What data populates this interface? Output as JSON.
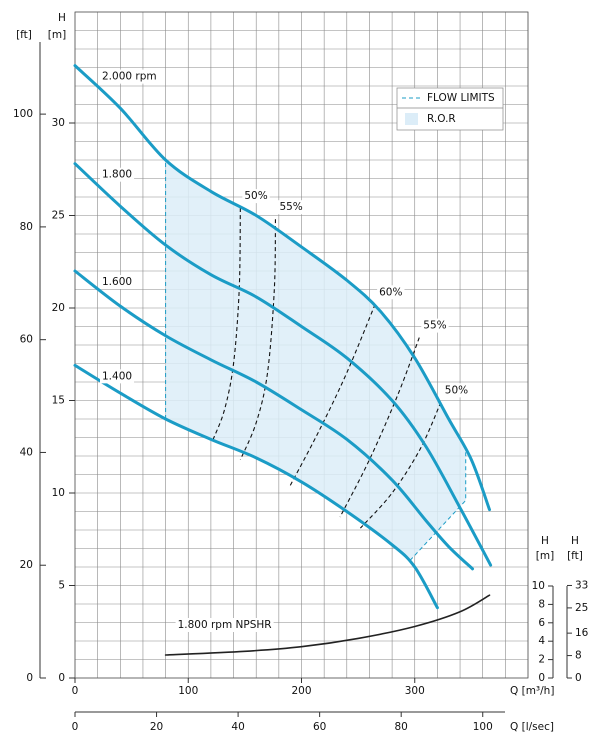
{
  "chart_data": {
    "type": "line",
    "xlabel": "Q [m³/h]",
    "x2label": "Q [l/sec]",
    "ylabel": "H",
    "ylabel_unit": "[m]",
    "yftlabel": "[ft]",
    "y2label": "H",
    "y2label_unit": "[m]",
    "y2ftlabel": "H",
    "y2ftlabel_unit": "[ft]",
    "xlim": [
      0,
      400
    ],
    "xticks": [
      0,
      100,
      200,
      300
    ],
    "x2lim": [
      0,
      111.1
    ],
    "x2ticks": [
      0,
      20,
      40,
      60,
      80,
      100
    ],
    "ylim": [
      0,
      36
    ],
    "yticks": [
      0,
      5,
      10,
      15,
      20,
      25,
      30
    ],
    "yftlim": [
      0,
      118.11
    ],
    "yftticks": [
      0,
      20,
      40,
      60,
      80,
      100
    ],
    "y2lim": [
      0,
      10
    ],
    "y2ticks": [
      0,
      2,
      4,
      6,
      8,
      10
    ],
    "y2ftlim": [
      0,
      32.81
    ],
    "y2ftticks": [
      0,
      8,
      16,
      25,
      33
    ],
    "grid": true,
    "xgrid": [
      0,
      20,
      40,
      60,
      80,
      100,
      120,
      140,
      160,
      180,
      200,
      220,
      240,
      260,
      280,
      300,
      320,
      340,
      360,
      380,
      400
    ],
    "ygrid": [
      0,
      1,
      2,
      3,
      4,
      5,
      6,
      7,
      8,
      9,
      10,
      11,
      12,
      13,
      14,
      15,
      16,
      17,
      18,
      19,
      20,
      21,
      22,
      23,
      24,
      25,
      26,
      27,
      28,
      29,
      30,
      31,
      32,
      33,
      34,
      35,
      36
    ],
    "series": [
      {
        "name": "2.000 rpm",
        "color": "#1b9cc6",
        "x": [
          0,
          40,
          80,
          120,
          160,
          200,
          240,
          270,
          300,
          330,
          350,
          366
        ],
        "values": [
          33.1,
          30.8,
          28,
          26.3,
          25,
          23.3,
          21.5,
          19.8,
          17.3,
          14,
          11.8,
          9.1
        ]
      },
      {
        "name": "1.800",
        "color": "#1b9cc6",
        "x": [
          0,
          40,
          80,
          120,
          160,
          200,
          240,
          280,
          310,
          340,
          367
        ],
        "values": [
          27.8,
          25.5,
          23.4,
          21.8,
          20.6,
          19,
          17.3,
          15,
          12.5,
          9.2,
          6.1
        ]
      },
      {
        "name": "1.600",
        "color": "#1b9cc6",
        "x": [
          0,
          40,
          80,
          120,
          160,
          200,
          240,
          280,
          310,
          330,
          351
        ],
        "values": [
          22,
          20.1,
          18.5,
          17.2,
          16,
          14.5,
          12.9,
          10.7,
          8.5,
          7.1,
          5.9
        ]
      },
      {
        "name": "1.400",
        "color": "#1b9cc6",
        "x": [
          0,
          40,
          80,
          120,
          160,
          200,
          240,
          280,
          300,
          320
        ],
        "values": [
          16.9,
          15.4,
          14,
          12.9,
          11.9,
          10.6,
          9,
          7.2,
          6,
          3.8
        ]
      },
      {
        "name": "1.800 rpm    NPSHR",
        "color": "#222222",
        "axis": "y2",
        "x": [
          80,
          150,
          200,
          250,
          300,
          340,
          366
        ],
        "values": [
          2.5,
          2.9,
          3.4,
          4.3,
          5.6,
          7.2,
          9.0
        ]
      }
    ],
    "efficiency": [
      {
        "name": "50%",
        "x": [
          146,
          145,
          140,
          132,
          122
        ],
        "values": [
          25.4,
          21,
          17,
          14.5,
          12.9
        ]
      },
      {
        "name": "55%",
        "x": [
          177,
          176,
          170,
          160,
          146
        ],
        "values": [
          24.8,
          21,
          16.5,
          13.8,
          11.8
        ]
      },
      {
        "name": "60%",
        "x": [
          265,
          240,
          215,
          190
        ],
        "values": [
          20.2,
          16.5,
          13.3,
          10.4
        ]
      },
      {
        "name": "55%",
        "x": [
          304,
          285,
          260,
          234
        ],
        "values": [
          18.4,
          15.3,
          11.8,
          8.7
        ]
      },
      {
        "name": "50%",
        "x": [
          323,
          305,
          280,
          252
        ],
        "values": [
          14.9,
          12.4,
          10,
          8.1
        ]
      }
    ],
    "flow_limits": {
      "name": "FLOW  LIMITS",
      "color": "#1b9cc6",
      "pieces": [
        {
          "x": [
            80,
            80
          ],
          "values": [
            14,
            28
          ]
        },
        {
          "x": [
            345,
            345,
            295
          ],
          "values": [
            12.2,
            9.6,
            6.3
          ]
        }
      ]
    },
    "ror": {
      "name": "R.O.R",
      "color": "#dcedf8",
      "x": [
        80,
        120,
        160,
        200,
        240,
        270,
        300,
        330,
        345,
        345,
        295,
        280,
        240,
        200,
        160,
        120,
        80
      ],
      "values": [
        28,
        26.3,
        25,
        23.3,
        21.5,
        19.8,
        17.3,
        14,
        12.2,
        9.6,
        6.3,
        7.2,
        9,
        10.6,
        11.9,
        12.9,
        14
      ]
    },
    "legend": "top-right"
  }
}
